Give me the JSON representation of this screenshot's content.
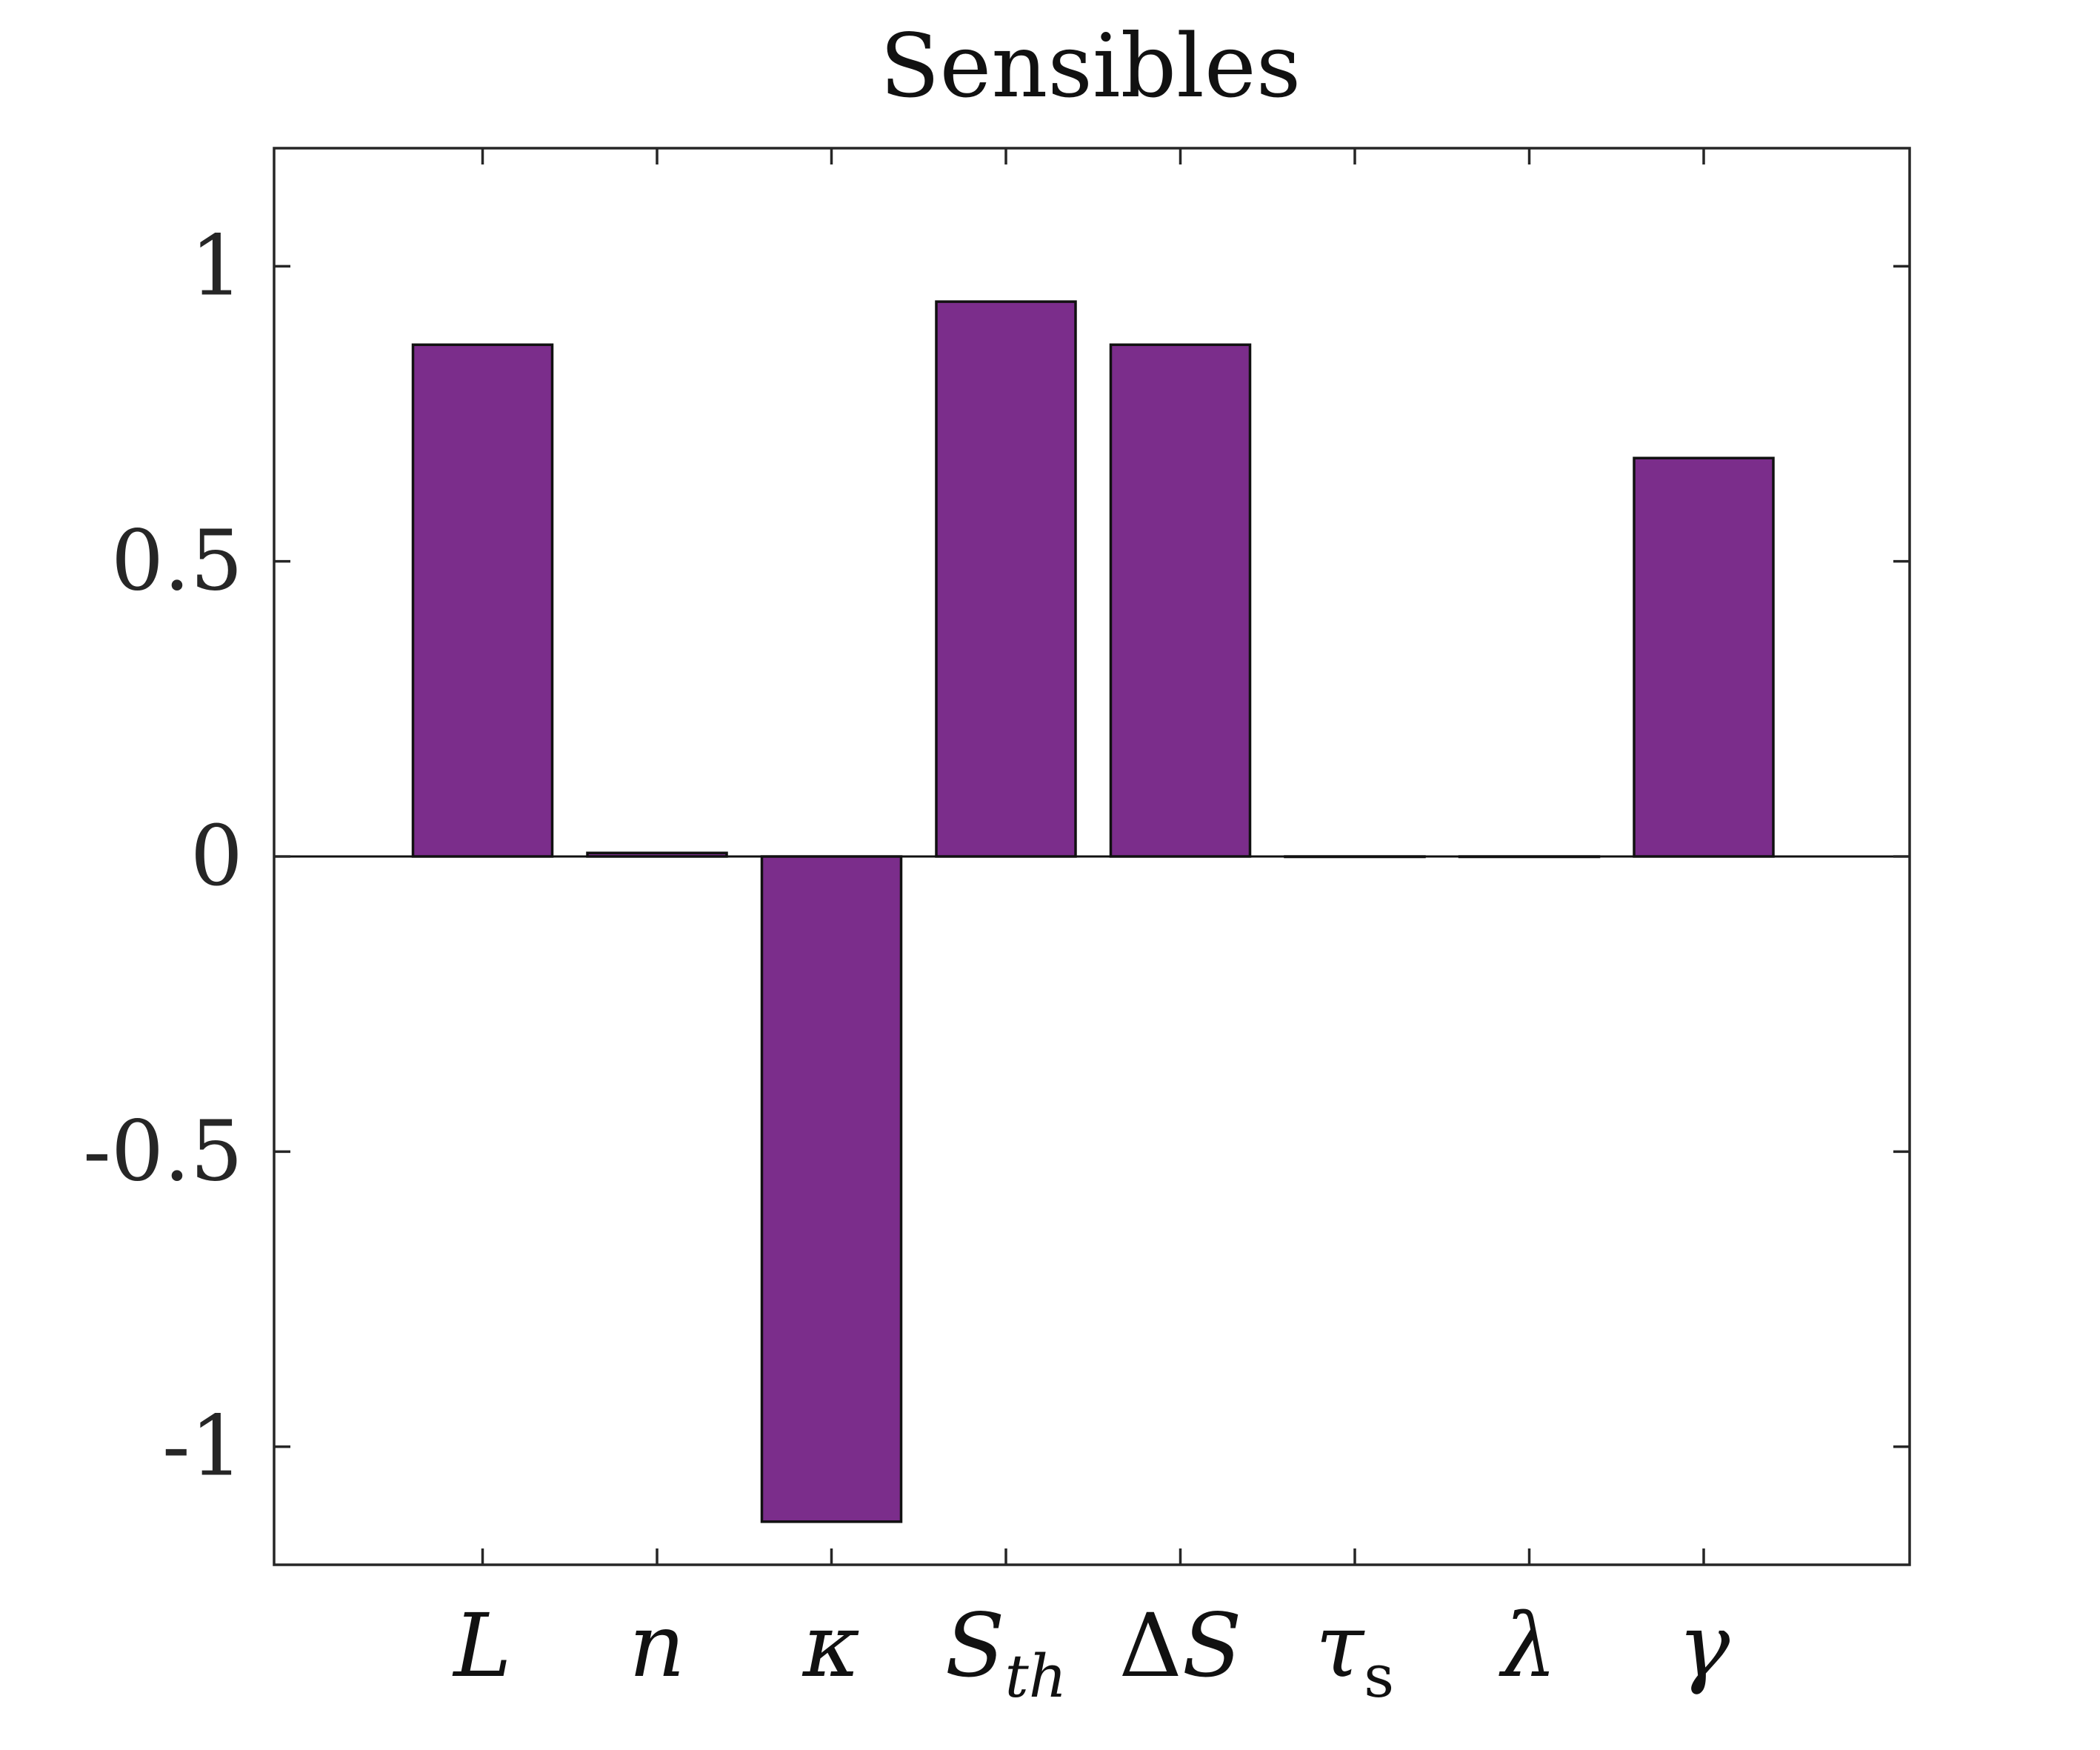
{
  "chart_data": {
    "type": "bar",
    "title": "Sensibles",
    "xlabel": "",
    "ylabel": "",
    "categories": [
      {
        "main": "L",
        "sub": ""
      },
      {
        "main": "n",
        "sub": ""
      },
      {
        "main": "κ",
        "sub": ""
      },
      {
        "main": "S",
        "sub": "th"
      },
      {
        "main": "ΔS",
        "sub": ""
      },
      {
        "main": "τ",
        "sub": "s"
      },
      {
        "main": "λ",
        "sub": ""
      },
      {
        "main": "γ",
        "sub": ""
      }
    ],
    "values": [
      0.867,
      0.006,
      -1.127,
      0.94,
      0.867,
      0.0,
      0.0,
      0.675
    ],
    "ylim": [
      -1.2,
      1.2
    ],
    "yticks": [
      -1,
      -0.5,
      0,
      0.5,
      1
    ],
    "ytick_labels": [
      "-1",
      "-0.5",
      "0",
      "0.5",
      "1"
    ],
    "grid": false,
    "bar_color": "#7B2D8B",
    "edge_color": "#111111",
    "axis_color": "#262626"
  }
}
